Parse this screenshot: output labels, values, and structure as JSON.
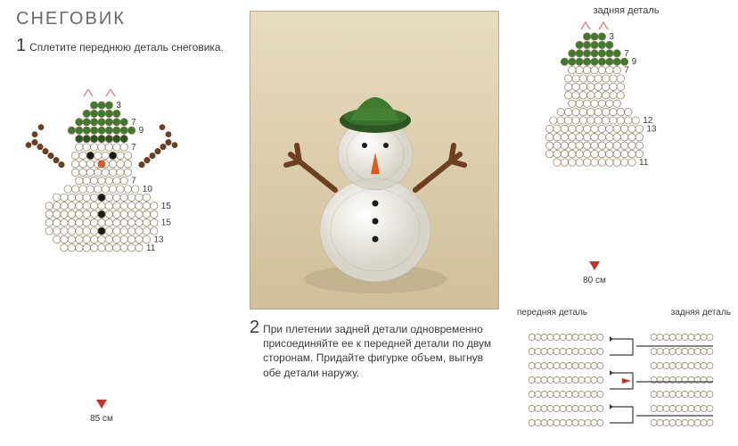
{
  "title": "СНЕГОВИК",
  "step1_num": "1",
  "step1_text": "Сплетите переднюю деталь снеговика.",
  "step2_num": "2",
  "step2_text": "При плетении задней детали одновременно присоединяйте ее к передней детали по двум сторонам. Придайте фигурке объем, выгнув обе детали наружу.",
  "back_label": "задняя деталь",
  "front_label": "передняя деталь",
  "front_wire": "85 см",
  "back_wire": "80 см",
  "colors": {
    "white_bead": "#ffffff",
    "bead_outline": "#8a7a5a",
    "green_bead": "#3f7a2f",
    "dark_green": "#2d5522",
    "black_bead": "#1a1a1a",
    "brown_bead": "#6b3f1f",
    "orange_bead": "#e05a1a",
    "red": "#c63228",
    "frame": "#b8a890",
    "photo_bg_top": "#e8dcc0",
    "photo_bg_bottom": "#cfbf9a",
    "wire": "#9a8860"
  },
  "front_diagram": {
    "hat_rows": [
      3,
      5,
      7,
      9,
      7
    ],
    "head_rows": [
      7,
      8,
      8,
      8,
      7
    ],
    "body_rows": [
      10,
      13,
      15,
      15,
      15,
      15,
      13,
      11
    ],
    "row_labels_right": [
      "3",
      "7",
      "9",
      "7",
      "8",
      "10",
      "15",
      "15",
      "13",
      "11"
    ],
    "arm_beads": 6
  },
  "back_diagram": {
    "hat_rows": [
      3,
      5,
      7,
      9
    ],
    "head_rows": [
      7,
      8,
      8,
      8,
      7
    ],
    "body_rows": [
      10,
      12,
      13,
      13,
      13,
      13,
      11
    ],
    "row_labels_right": [
      "3",
      "7",
      "9",
      "7",
      "12",
      "13",
      "11"
    ]
  },
  "assembly_labels": {
    "left": "передняя деталь",
    "right": "задняя деталь"
  }
}
